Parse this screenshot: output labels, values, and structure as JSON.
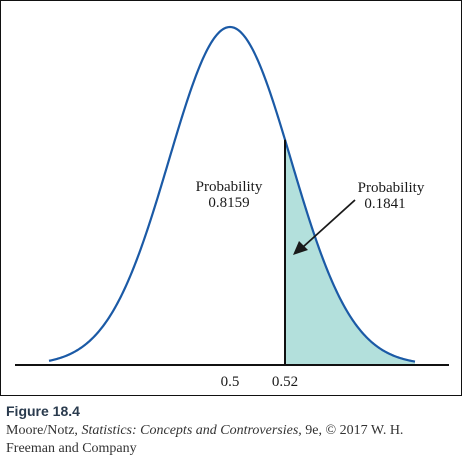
{
  "chart_data": {
    "type": "area",
    "title": "",
    "xlabel": "",
    "ylabel": "",
    "distribution": {
      "kind": "normal",
      "mean": 0.5,
      "sd": 0.0222
    },
    "x_tick_labels": [
      "0.5",
      "0.52"
    ],
    "x_ticks": [
      0.5,
      0.52
    ],
    "cutoff": 0.52,
    "grid": false,
    "regions": [
      {
        "label": "Probability",
        "value": "0.8159",
        "side": "left-of-cutoff",
        "shaded": false
      },
      {
        "label": "Probability",
        "value": "0.1841",
        "side": "right-of-cutoff",
        "shaded": true
      }
    ],
    "colors": {
      "curve": "#1b5aa6",
      "shade": "#b3e0dc",
      "axis": "#111111"
    }
  },
  "caption": {
    "figure_label": "Figure 18.4",
    "authors": "Moore/Notz, ",
    "book_title": "Statistics: Concepts and Controversies",
    "rest_line1": ", 9e, © 2017 W. H.",
    "rest_line2": "Freeman and Company"
  }
}
